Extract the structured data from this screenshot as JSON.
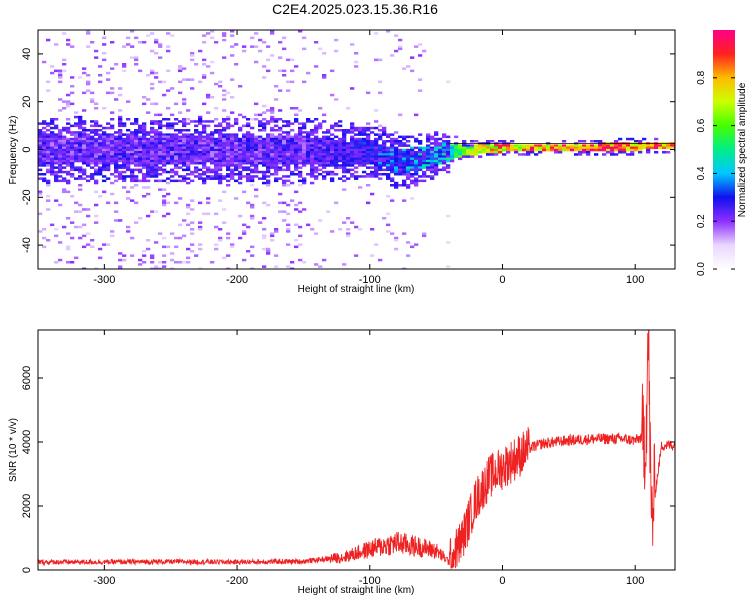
{
  "title": "C2E4.2025.023.15.36.R16",
  "chart_data": [
    {
      "type": "heatmap",
      "xlabel": "Height of straight line (km)",
      "ylabel": "Frequency (Hz)",
      "xlim": [
        -350,
        130
      ],
      "ylim": [
        -50,
        50
      ],
      "xticks": [
        -300,
        -200,
        -100,
        0,
        100
      ],
      "yticks": [
        -40,
        -20,
        0,
        20,
        40
      ],
      "colorbar": {
        "label": "Normalized spectral amplitude",
        "range": [
          0,
          1
        ],
        "ticks": [
          0.0,
          0.2,
          0.4,
          0.6,
          0.8
        ]
      },
      "bands": [
        {
          "x": -350,
          "center_hz": 0,
          "core_halfwidth_hz": 6,
          "amplitude": 0.2
        },
        {
          "x": -150,
          "center_hz": 0,
          "core_halfwidth_hz": 6,
          "amplitude": 0.2
        },
        {
          "x": -100,
          "center_hz": -1,
          "core_halfwidth_hz": 5,
          "amplitude": 0.3
        },
        {
          "x": -75,
          "center_hz": -5,
          "core_halfwidth_hz": 5,
          "amplitude": 0.4
        },
        {
          "x": -45,
          "center_hz": -1,
          "core_halfwidth_hz": 4,
          "amplitude": 0.4
        },
        {
          "x": -30,
          "center_hz": 0,
          "core_halfwidth_hz": 2,
          "amplitude": 0.6
        },
        {
          "x": 0,
          "center_hz": 1,
          "core_halfwidth_hz": 1.5,
          "amplitude": 0.8
        },
        {
          "x": 130,
          "center_hz": 2,
          "core_halfwidth_hz": 1.5,
          "amplitude": 0.9
        }
      ]
    },
    {
      "type": "line",
      "xlabel": "Height of straight line (km)",
      "ylabel": "SNR (10 * v/v)",
      "xlim": [
        -350,
        130
      ],
      "ylim": [
        0,
        7500
      ],
      "xticks": [
        -300,
        -200,
        -100,
        0,
        100
      ],
      "yticks": [
        0,
        2000,
        4000,
        6000
      ],
      "line_color": "#ee2222",
      "series": [
        {
          "x": [
            -350,
            -300,
            -250,
            -200,
            -150,
            -120,
            -100,
            -80,
            -60,
            -50,
            -40,
            -30,
            -20,
            -10,
            0,
            10,
            20,
            30,
            50,
            70,
            90,
            100,
            105,
            108,
            110,
            112,
            120,
            130
          ],
          "y": [
            250,
            250,
            260,
            250,
            270,
            400,
            650,
            850,
            700,
            600,
            250,
            1000,
            2200,
            2900,
            3200,
            3500,
            3800,
            3950,
            4050,
            4100,
            4100,
            4050,
            4150,
            4200,
            7500,
            1500,
            3900,
            3900
          ]
        }
      ]
    }
  ]
}
